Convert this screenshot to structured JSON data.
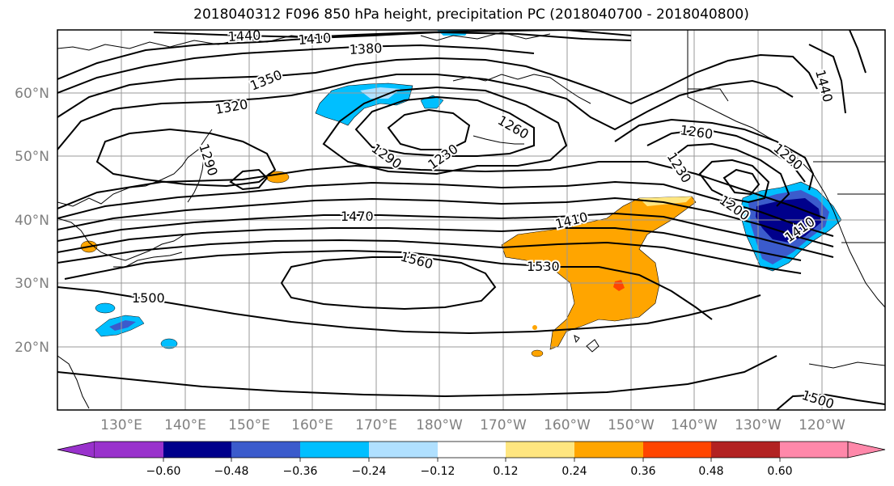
{
  "title": "2018040312 F096 850 hPa height, precipitation PC (2018040700 - 2018040800)",
  "lon_labels": [
    "130°E",
    "140°E",
    "150°E",
    "160°E",
    "170°E",
    "180°W",
    "170°W",
    "160°W",
    "150°W",
    "140°W",
    "130°W",
    "120°W"
  ],
  "lat_labels": [
    "20°N",
    "30°N",
    "40°N",
    "50°N",
    "60°N"
  ],
  "contour_labels": [
    "1440",
    "1410",
    "1380",
    "1350",
    "1320",
    "1290",
    "1260",
    "1230",
    "1290",
    "1260",
    "1230",
    "1470",
    "1410",
    "1560",
    "1530",
    "1500",
    "1500",
    "1440",
    "1290",
    "1410",
    "1200"
  ],
  "colorbar": {
    "tick_labels": [
      "−0.60",
      "−0.48",
      "−0.36",
      "−0.24",
      "−0.12",
      "0.12",
      "0.24",
      "0.36",
      "0.48",
      "0.60"
    ],
    "colors": [
      "#9932cc",
      "#00008b",
      "#3b5bcc",
      "#00bfff",
      "#b0e0ff",
      "#ffffff",
      "#ffe680",
      "#ffa500",
      "#ff4500",
      "#b22222",
      "#ff88aa"
    ]
  }
}
